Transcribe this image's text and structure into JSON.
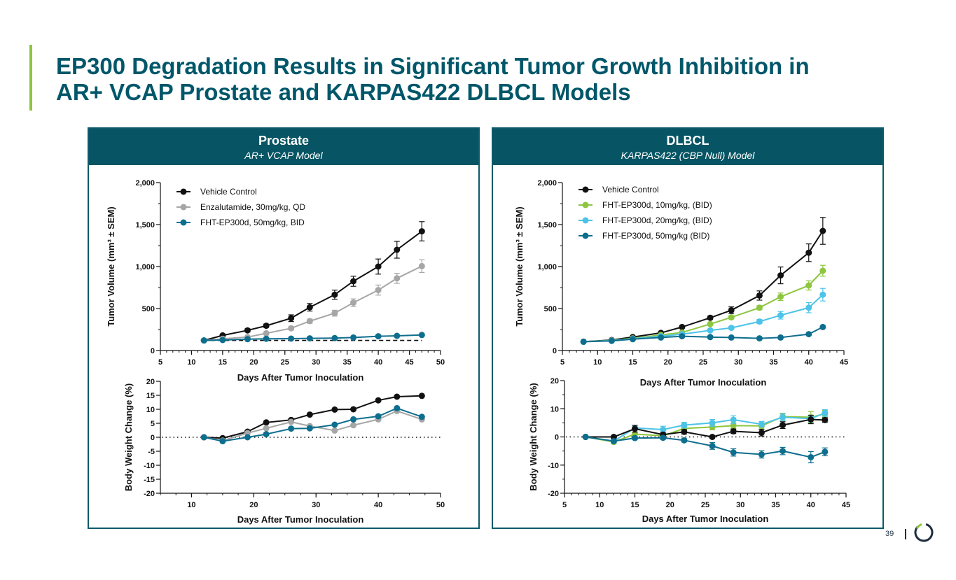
{
  "slide": {
    "title_line1": "EP300 Degradation Results in Significant Tumor Growth Inhibition in",
    "title_line2": "AR+ VCAP Prostate and KARPAS422 DLBCL Models",
    "page_number": "39",
    "accent_color": "#8dc63f",
    "brand_color": "#075564"
  },
  "panels": [
    {
      "heading": "Prostate",
      "subheading": "AR+ VCAP Model"
    },
    {
      "heading": "DLBCL",
      "subheading": "KARPAS422 (CBP Null) Model"
    }
  ],
  "chart_data": [
    {
      "id": "prostate-tumor-volume",
      "type": "line",
      "panel": "Prostate",
      "xlabel": "Days After Tumor Inoculation",
      "ylabel": "Tumor Volume (mm³ ± SEM)",
      "xlim": [
        5,
        50
      ],
      "xticks": [
        5,
        10,
        15,
        20,
        25,
        30,
        35,
        40,
        45,
        50
      ],
      "ylim": [
        0,
        2000
      ],
      "yticks": [
        0,
        500,
        1000,
        1500,
        2000
      ],
      "ytick_labels": [
        "0",
        "500",
        "1,000",
        "1,500",
        "2,000"
      ],
      "legend_position": "top-left",
      "reference_line": {
        "y": 120,
        "style": "dashed",
        "color": "#111111"
      },
      "series": [
        {
          "name": "Vehicle  Control",
          "color": "#111111",
          "x": [
            12,
            15,
            19,
            22,
            26,
            29,
            33,
            36,
            40,
            43,
            47
          ],
          "y": [
            120,
            180,
            240,
            295,
            385,
            515,
            665,
            825,
            1000,
            1200,
            1420
          ],
          "err": [
            0,
            15,
            20,
            20,
            40,
            45,
            55,
            60,
            90,
            100,
            115
          ]
        },
        {
          "name": "Enzalutamide, 30mg/kg, QD",
          "color": "#a6a6a6",
          "x": [
            12,
            15,
            19,
            22,
            26,
            29,
            33,
            36,
            40,
            43,
            47
          ],
          "y": [
            120,
            140,
            160,
            205,
            265,
            350,
            445,
            570,
            720,
            860,
            1005
          ],
          "err": [
            0,
            10,
            12,
            15,
            20,
            25,
            35,
            45,
            60,
            60,
            75
          ]
        },
        {
          "name": "FHT-EP300d, 50mg/kg, BID",
          "color": "#0e6e8e",
          "x": [
            12,
            15,
            19,
            22,
            26,
            29,
            33,
            36,
            40,
            43,
            47
          ],
          "y": [
            120,
            125,
            135,
            140,
            142,
            145,
            148,
            155,
            170,
            175,
            185
          ],
          "err": [
            0,
            5,
            5,
            6,
            6,
            6,
            8,
            8,
            10,
            10,
            12
          ]
        }
      ]
    },
    {
      "id": "prostate-body-weight",
      "type": "line",
      "panel": "Prostate",
      "xlabel": "Days After Tumor Inoculation",
      "ylabel": "Body Weight Change (%)",
      "xlim": [
        5,
        50
      ],
      "xticks": [
        10,
        20,
        30,
        40,
        50
      ],
      "ylim": [
        -20,
        20
      ],
      "yticks": [
        -20,
        -15,
        -10,
        -5,
        0,
        5,
        10,
        15,
        20
      ],
      "ytick_labels": [
        "-20",
        "-15",
        "-10",
        "-5",
        "0",
        "5",
        "10",
        "15",
        "20"
      ],
      "reference_line": {
        "y": 0,
        "style": "dotted",
        "color": "#111111"
      },
      "series": [
        {
          "name": "Vehicle  Control",
          "color": "#111111",
          "x": [
            12,
            15,
            19,
            22,
            26,
            29,
            33,
            36,
            40,
            43,
            47
          ],
          "y": [
            0,
            -0.3,
            2.0,
            5.3,
            6.2,
            8.1,
            9.9,
            10.0,
            13.2,
            14.5,
            14.8
          ]
        },
        {
          "name": "Enzalutamide, 30mg/kg, QD",
          "color": "#a6a6a6",
          "x": [
            12,
            15,
            19,
            22,
            26,
            29,
            33,
            36,
            40,
            43,
            47
          ],
          "y": [
            0,
            -1.2,
            1.5,
            3.2,
            5.5,
            4.0,
            2.4,
            4.3,
            6.4,
            9.4,
            6.4
          ]
        },
        {
          "name": "FHT-EP300d, 50mg/kg, BID",
          "color": "#0e6e8e",
          "x": [
            12,
            15,
            19,
            22,
            26,
            29,
            33,
            36,
            40,
            43,
            47
          ],
          "y": [
            0,
            -1.4,
            0.0,
            1.1,
            3.1,
            3.2,
            4.5,
            6.4,
            7.5,
            10.4,
            7.3
          ]
        }
      ]
    },
    {
      "id": "dlbcl-tumor-volume",
      "type": "line",
      "panel": "DLBCL",
      "xlabel": "Days After Tumor Inoculation",
      "ylabel": "Tumor Volume (mm³ ± SEM)",
      "xlim": [
        5,
        45
      ],
      "xticks": [
        5,
        10,
        15,
        20,
        25,
        30,
        35,
        40,
        45
      ],
      "ylim": [
        0,
        2000
      ],
      "yticks": [
        0,
        500,
        1000,
        1500,
        2000
      ],
      "ytick_labels": [
        "0",
        "500",
        "1,000",
        "1,500",
        "2,000"
      ],
      "legend_position": "top-left",
      "series": [
        {
          "name": "Vehicle Control",
          "color": "#111111",
          "x": [
            8,
            12,
            15,
            19,
            22,
            26,
            29,
            33,
            36,
            40,
            42
          ],
          "y": [
            105,
            125,
            160,
            210,
            280,
            390,
            480,
            655,
            895,
            1165,
            1425
          ],
          "err": [
            0,
            8,
            10,
            12,
            15,
            20,
            40,
            55,
            100,
            105,
            160
          ]
        },
        {
          "name": "FHT-EP300d, 10mg/kg, (BID)",
          "color": "#8dc63f",
          "x": [
            8,
            12,
            15,
            19,
            22,
            26,
            29,
            33,
            36,
            40,
            42
          ],
          "y": [
            105,
            120,
            145,
            185,
            215,
            315,
            395,
            510,
            640,
            775,
            950
          ],
          "err": [
            0,
            6,
            8,
            10,
            12,
            15,
            20,
            25,
            45,
            55,
            65
          ]
        },
        {
          "name": "FHT-EP300d, 20mg/kg, (BID)",
          "color": "#4dc3e8",
          "x": [
            8,
            12,
            15,
            19,
            22,
            26,
            29,
            33,
            36,
            40,
            42
          ],
          "y": [
            105,
            118,
            140,
            170,
            195,
            240,
            270,
            345,
            420,
            510,
            665
          ],
          "err": [
            0,
            5,
            6,
            8,
            10,
            15,
            15,
            25,
            45,
            60,
            75
          ]
        },
        {
          "name": "FHT-EP300d, 50mg/kg (BID)",
          "color": "#0e6e8e",
          "x": [
            8,
            12,
            15,
            19,
            22,
            26,
            29,
            33,
            36,
            40,
            42
          ],
          "y": [
            105,
            115,
            135,
            155,
            170,
            160,
            155,
            145,
            155,
            195,
            280
          ],
          "err": [
            0,
            5,
            5,
            6,
            6,
            6,
            6,
            6,
            8,
            10,
            12
          ]
        }
      ]
    },
    {
      "id": "dlbcl-body-weight",
      "type": "line",
      "panel": "DLBCL",
      "xlabel": "Days After Tumor Inoculation",
      "top_label": "Days After Tumor Inoculation",
      "ylabel": "Body Weight Change (%)",
      "xlim": [
        5,
        45
      ],
      "xticks": [
        5,
        10,
        15,
        20,
        25,
        30,
        35,
        40,
        45
      ],
      "ylim": [
        -20,
        20
      ],
      "yticks": [
        -20,
        -10,
        0,
        10,
        20
      ],
      "ytick_labels": [
        "-20",
        "-10",
        "0",
        "10",
        "20"
      ],
      "reference_line": {
        "y": 0,
        "style": "dotted",
        "color": "#111111"
      },
      "series": [
        {
          "name": "FHT-EP300d, 10mg/kg, (BID)",
          "color": "#8dc63f",
          "x": [
            8,
            12,
            15,
            19,
            22,
            26,
            29,
            33,
            36,
            40,
            42
          ],
          "y": [
            0,
            -1.8,
            1.0,
            0.4,
            3.0,
            3.5,
            4.0,
            3.9,
            7.2,
            7.0,
            8.2
          ],
          "err": [
            0,
            0.5,
            0.8,
            0.8,
            0.8,
            1.0,
            1.0,
            1.0,
            1.2,
            2.0,
            1.2
          ]
        },
        {
          "name": "FHT-EP300d, 20mg/kg, (BID)",
          "color": "#4dc3e8",
          "x": [
            8,
            12,
            15,
            19,
            22,
            26,
            29,
            33,
            36,
            40,
            42
          ],
          "y": [
            0,
            -1.5,
            3.2,
            2.6,
            4.2,
            5.0,
            6.1,
            4.5,
            7.0,
            6.5,
            8.5
          ],
          "err": [
            0,
            0.5,
            0.8,
            1.2,
            1.0,
            1.2,
            1.4,
            1.0,
            1.2,
            1.2,
            1.2
          ]
        },
        {
          "name": "Vehicle Control",
          "color": "#111111",
          "x": [
            8,
            12,
            15,
            19,
            22,
            26,
            29,
            33,
            36,
            40,
            42
          ],
          "y": [
            0,
            0,
            2.9,
            0.8,
            1.8,
            0,
            2.0,
            1.5,
            4.2,
            6.2,
            6.0
          ],
          "err": [
            0,
            0.5,
            1.2,
            0.8,
            0.8,
            0.5,
            0.8,
            1.2,
            1.2,
            1.5,
            0.8
          ]
        },
        {
          "name": "FHT-EP300d, 50mg/kg (BID)",
          "color": "#0e6e8e",
          "x": [
            8,
            12,
            15,
            19,
            22,
            26,
            29,
            33,
            36,
            40,
            42
          ],
          "y": [
            0,
            -1.5,
            -0.4,
            -0.3,
            -1.2,
            -3.2,
            -5.5,
            -6.2,
            -5.0,
            -7.2,
            -5.3
          ],
          "err": [
            0,
            0.5,
            0.6,
            0.6,
            0.6,
            1.2,
            1.3,
            1.3,
            1.3,
            2.0,
            1.4
          ]
        }
      ]
    }
  ]
}
